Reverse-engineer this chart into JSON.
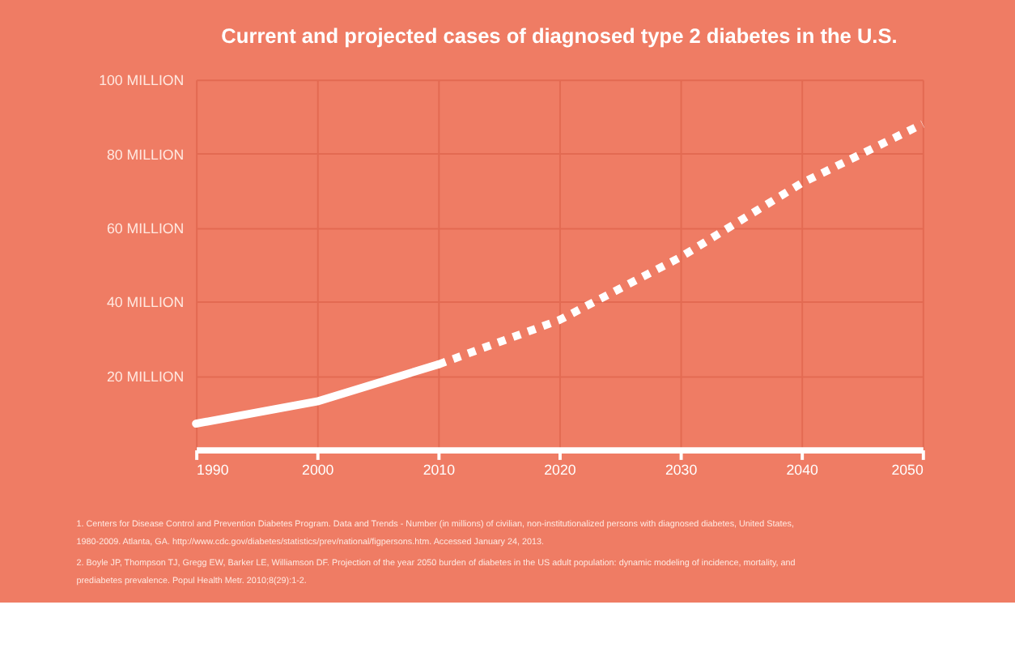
{
  "chart_data": {
    "type": "line",
    "title": "Current and projected cases of diagnosed type 2 diabetes in the U.S.",
    "xlim": [
      1990,
      2050
    ],
    "xticks": [
      1990,
      2000,
      2010,
      2020,
      2030,
      2040,
      2050
    ],
    "ylim": [
      0,
      100
    ],
    "yticks": [
      {
        "value": 20,
        "label": "20 MILLION"
      },
      {
        "value": 40,
        "label": "40 MILLION"
      },
      {
        "value": 60,
        "label": "60 MILLION"
      },
      {
        "value": 80,
        "label": "80 MILLION"
      },
      {
        "value": 100,
        "label": "100 MILLION"
      }
    ],
    "grid": true,
    "marker": "none",
    "series": [
      {
        "color": "#ffffff",
        "line_style": "solid",
        "x": [
          1990,
          2000,
          2010
        ],
        "values": [
          7,
          13,
          23
        ]
      },
      {
        "color": "#ffffff",
        "line_style": "dotted",
        "x": [
          2010,
          2020,
          2030,
          2040,
          2050
        ],
        "values": [
          23,
          35,
          52,
          72,
          88
        ]
      }
    ],
    "annotations": [
      "1. Centers for Disease Control and Prevention Diabetes Program. Data and Trends - Number (in millions) of civilian, non-institutionalized persons with diagnosed diabetes, United States, 1980-2009. Atlanta, GA. http://www.cdc.gov/diabetes/statistics/prev/national/figpersons.htm. Accessed January 24, 2013.",
      "2. Boyle JP, Thompson TJ, Gregg EW, Barker LE, Williamson DF. Projection of the year 2050 burden of diabetes in the US adult population: dynamic modeling of incidence, mortality, and prediabetes prevalence. Popul Health Metr. 2010;8(29):1-2."
    ]
  }
}
